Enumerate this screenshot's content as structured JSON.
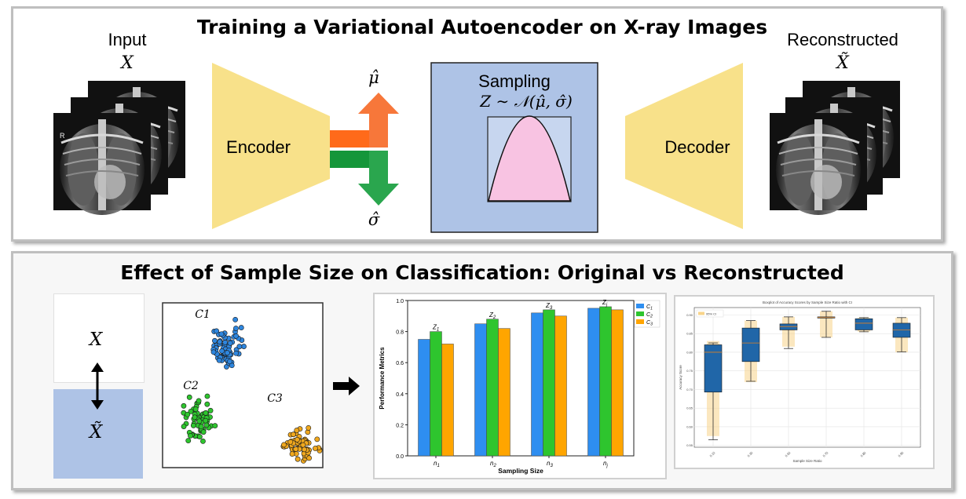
{
  "top": {
    "title": "Training a Variational Autoencoder on X-ray Images",
    "input_label": "Input",
    "input_symbol": "X",
    "output_label": "Reconstructed",
    "output_symbol": "X̃",
    "encoder_label": "Encoder",
    "decoder_label": "Decoder",
    "mu_symbol": "μ̂",
    "sigma_symbol": "σ̂",
    "sampling_label": "Sampling",
    "sampling_formula": "Z ∼ 𝒩(μ̂, σ̂)",
    "xray_marker": "R"
  },
  "bottom": {
    "title": "Effect of Sample Size on Classification: Original vs Reconstructed",
    "x_symbol": "X",
    "xtilde_symbol": "X̃",
    "clusters": [
      {
        "label": "C1",
        "color": "#2e86de"
      },
      {
        "label": "C2",
        "color": "#2ec52e"
      },
      {
        "label": "C3",
        "color": "#f0a81e"
      }
    ]
  },
  "chart_data": [
    {
      "type": "bar",
      "ylabel": "Performance Metrics",
      "xlabel": "Sampling Size",
      "categories": [
        "n1",
        "n2",
        "n3",
        "nj"
      ],
      "ylim": [
        0.0,
        1.0
      ],
      "yticks": [
        "0.0",
        "0.2",
        "0.4",
        "0.6",
        "0.8",
        "1.0"
      ],
      "series": [
        {
          "name": "C1",
          "color": "#2e8ef0",
          "values": [
            0.75,
            0.85,
            0.92,
            0.95
          ]
        },
        {
          "name": "C2",
          "color": "#2ec52e",
          "values": [
            0.8,
            0.88,
            0.94,
            0.96
          ]
        },
        {
          "name": "C3",
          "color": "#ffa500",
          "values": [
            0.72,
            0.82,
            0.9,
            0.94
          ]
        }
      ],
      "annotations": [
        "Z1",
        "Z2",
        "Z3",
        "Zj"
      ],
      "legend": "top-right"
    },
    {
      "type": "box",
      "title": "Boxplot of Accuracy Scores by Sample Size Ratio with CI",
      "xlabel": "Sample Size Ratio",
      "ylabel": "Accuracy Score",
      "legend_entry": "95% CI",
      "categories": [
        "0.15",
        "0.35",
        "0.55",
        "0.75",
        "0.85",
        "0.95"
      ],
      "yticks": [
        "0.55",
        "0.60",
        "0.65",
        "0.70",
        "0.75",
        "0.80",
        "0.85",
        "0.90"
      ],
      "ylim": [
        0.545,
        0.92
      ],
      "boxes": [
        {
          "whislo": 0.565,
          "q1": 0.693,
          "med": 0.8,
          "q3": 0.82,
          "whishi": 0.825,
          "ci": [
            0.575,
            0.83
          ]
        },
        {
          "whislo": 0.722,
          "q1": 0.775,
          "med": 0.825,
          "q3": 0.865,
          "whishi": 0.885,
          "ci": [
            0.72,
            0.885
          ]
        },
        {
          "whislo": 0.81,
          "q1": 0.86,
          "med": 0.869,
          "q3": 0.876,
          "whishi": 0.895,
          "ci": [
            0.815,
            0.895
          ]
        },
        {
          "whislo": 0.84,
          "q1": 0.893,
          "med": 0.894,
          "q3": 0.895,
          "whishi": 0.91,
          "ci": [
            0.84,
            0.91
          ]
        },
        {
          "whislo": 0.855,
          "q1": 0.86,
          "med": 0.878,
          "q3": 0.89,
          "whishi": 0.893,
          "ci": [
            0.855,
            0.893
          ]
        },
        {
          "whislo": 0.801,
          "q1": 0.84,
          "med": 0.86,
          "q3": 0.878,
          "whishi": 0.893,
          "ci": [
            0.8,
            0.893
          ]
        }
      ]
    }
  ]
}
